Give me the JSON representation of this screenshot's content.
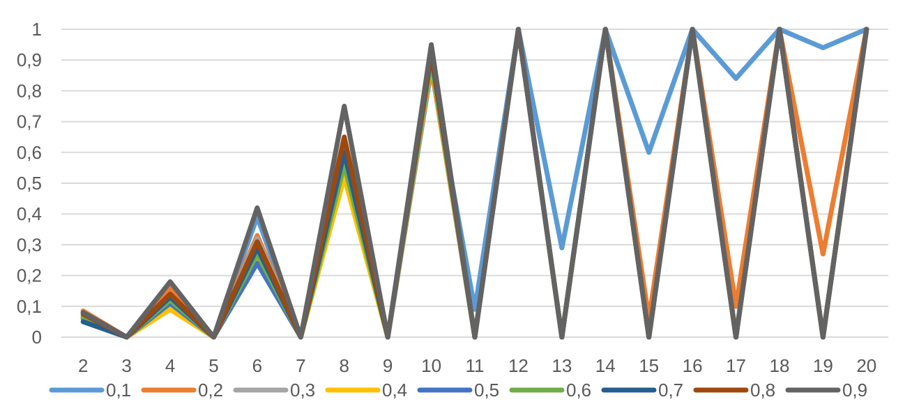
{
  "chart_data": {
    "type": "line",
    "title": "",
    "xlabel": "",
    "ylabel": "",
    "ylim": [
      0,
      1
    ],
    "grid": true,
    "legend_position": "bottom",
    "y_tick_labels": [
      "0",
      "0,1",
      "0,2",
      "0,3",
      "0,4",
      "0,5",
      "0,6",
      "0,7",
      "0,8",
      "0,9",
      "1"
    ],
    "x": [
      "2",
      "3",
      "4",
      "5",
      "6",
      "7",
      "8",
      "9",
      "10",
      "11",
      "12",
      "13",
      "14",
      "15",
      "16",
      "17",
      "18",
      "19",
      "20"
    ],
    "series": [
      {
        "name": "0,1",
        "color": "#5B9BD5",
        "values": [
          0.08,
          0,
          0.12,
          0,
          0.39,
          0,
          0.57,
          0,
          0.87,
          0.09,
          1,
          0.29,
          1,
          0.6,
          1,
          0.84,
          1,
          0.94,
          1
        ]
      },
      {
        "name": "0,2",
        "color": "#ED7D31",
        "values": [
          0.085,
          0,
          0.16,
          0,
          0.33,
          0,
          0.62,
          0,
          0.88,
          0,
          1,
          0,
          1,
          0.06,
          1,
          0.1,
          1,
          0.27,
          1
        ]
      },
      {
        "name": "0,3",
        "color": "#A5A5A5",
        "values": [
          0.07,
          0,
          0.1,
          0,
          0.32,
          0,
          0.55,
          0,
          0.89,
          0,
          1,
          0,
          1,
          0,
          1,
          0,
          1,
          0,
          1
        ]
      },
      {
        "name": "0,4",
        "color": "#FFC000",
        "values": [
          0.065,
          0,
          0.09,
          0,
          0.26,
          0,
          0.52,
          0,
          0.89,
          0,
          1,
          0,
          1,
          0,
          1,
          0,
          1,
          0,
          1
        ]
      },
      {
        "name": "0,5",
        "color": "#4472C4",
        "values": [
          0.06,
          0,
          0.11,
          0,
          0.24,
          0,
          0.58,
          0,
          0.9,
          0,
          1,
          0,
          1,
          0,
          1,
          0,
          1,
          0,
          1
        ]
      },
      {
        "name": "0,6",
        "color": "#70AD47",
        "values": [
          0.065,
          0,
          0.12,
          0,
          0.27,
          0,
          0.56,
          0,
          0.9,
          0,
          1,
          0,
          1,
          0,
          1,
          0,
          1,
          0,
          1
        ]
      },
      {
        "name": "0,7",
        "color": "#255E91",
        "values": [
          0.05,
          0,
          0.13,
          0,
          0.29,
          0,
          0.6,
          0,
          0.92,
          0,
          1,
          0,
          1,
          0,
          1,
          0,
          1,
          0,
          1
        ]
      },
      {
        "name": "0,8",
        "color": "#9E480E",
        "values": [
          0.075,
          0,
          0.14,
          0,
          0.31,
          0,
          0.65,
          0,
          0.93,
          0,
          1,
          0,
          1,
          0,
          1,
          0,
          1,
          0,
          1
        ]
      },
      {
        "name": "0,9",
        "color": "#636363",
        "values": [
          0.08,
          0,
          0.18,
          0,
          0.42,
          0,
          0.75,
          0,
          0.95,
          0,
          1,
          0,
          1,
          0,
          1,
          0,
          1,
          0,
          1
        ]
      }
    ]
  }
}
